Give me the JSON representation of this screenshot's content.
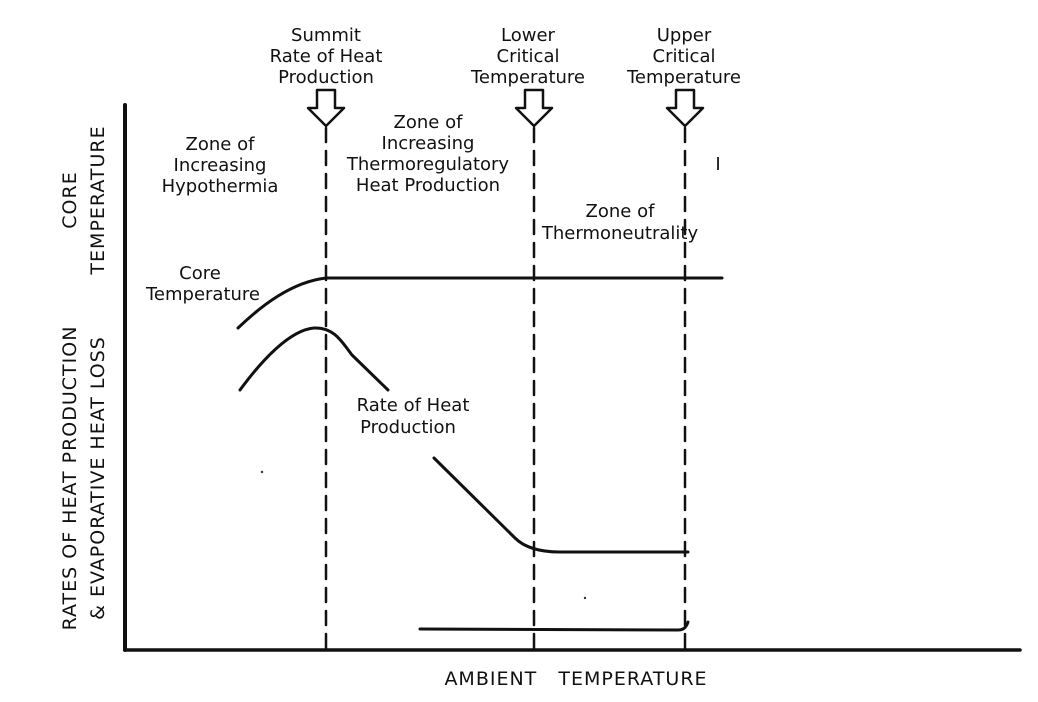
{
  "markers": {
    "summit": [
      "Summit",
      "Rate of Heat",
      "Production"
    ],
    "lct": [
      "Lower",
      "Critical",
      "Temperature"
    ],
    "uct": [
      "Upper",
      "Critical",
      "Temperature"
    ]
  },
  "zones": {
    "hypothermia": [
      "Zone of",
      "Increasing",
      "Hypothermia"
    ],
    "thermoregulatory": [
      "Zone of",
      "Increasing",
      "Thermoregulatory",
      "Heat Production"
    ],
    "thermoneutrality": [
      "Zone of",
      "Thermoneutrality"
    ]
  },
  "curves": {
    "core_temperature": [
      "Core",
      "Temperature"
    ],
    "heat_production": [
      "Rate of Heat",
      "Production"
    ]
  },
  "axes": {
    "x_label": "AMBIENT   TEMPERATURE",
    "y_upper": [
      "CORE",
      "TEMPERATURE"
    ],
    "y_lower": [
      "RATES OF HEAT PRODUCTION",
      "& EVAPORATIVE HEAT LOSS"
    ]
  },
  "stray_mark": "I"
}
